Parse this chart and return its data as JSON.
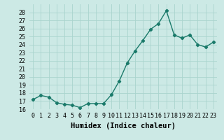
{
  "x": [
    0,
    1,
    2,
    3,
    4,
    5,
    6,
    7,
    8,
    9,
    10,
    11,
    12,
    13,
    14,
    15,
    16,
    17,
    18,
    19,
    20,
    21,
    22,
    23
  ],
  "y": [
    17.2,
    17.7,
    17.5,
    16.8,
    16.6,
    16.5,
    16.2,
    16.7,
    16.7,
    16.7,
    17.8,
    19.5,
    21.7,
    23.2,
    24.5,
    25.9,
    26.6,
    28.2,
    25.2,
    24.8,
    25.2,
    24.0,
    23.7,
    24.3
  ],
  "line_color": "#1a7a6a",
  "marker": "D",
  "markersize": 2.2,
  "linewidth": 1.0,
  "background_color": "#cce9e5",
  "grid_color": "#aad4ce",
  "xlabel": "Humidex (Indice chaleur)",
  "ylim": [
    16,
    29
  ],
  "xlim": [
    -0.5,
    23.5
  ],
  "yticks": [
    16,
    17,
    18,
    19,
    20,
    21,
    22,
    23,
    24,
    25,
    26,
    27,
    28
  ],
  "xticks": [
    0,
    1,
    2,
    3,
    4,
    5,
    6,
    7,
    8,
    9,
    10,
    11,
    12,
    13,
    14,
    15,
    16,
    17,
    18,
    19,
    20,
    21,
    22,
    23
  ],
  "xtick_labels": [
    "0",
    "1",
    "2",
    "3",
    "4",
    "5",
    "6",
    "7",
    "8",
    "9",
    "10",
    "11",
    "12",
    "13",
    "14",
    "15",
    "16",
    "17",
    "18",
    "19",
    "20",
    "21",
    "22",
    "23"
  ],
  "axis_fontsize": 6.5,
  "tick_fontsize": 6.0,
  "xlabel_fontsize": 7.5
}
